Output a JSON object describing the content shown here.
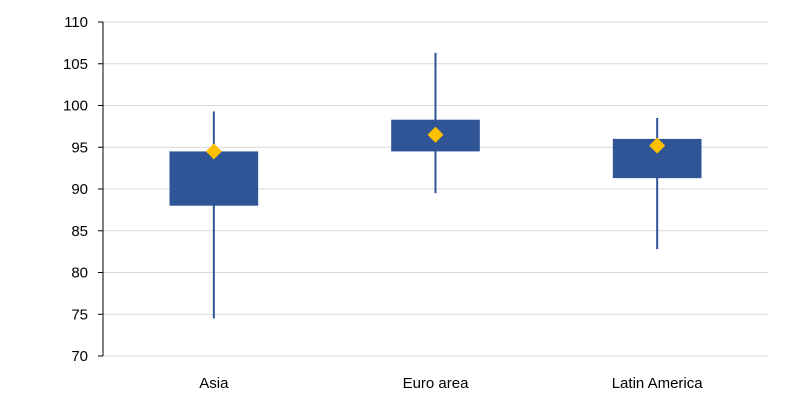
{
  "chart_data": {
    "type": "boxplot",
    "title": "",
    "xlabel": "",
    "ylabel": "",
    "ylim": [
      70,
      110
    ],
    "ytick_step": 5,
    "yticks": [
      "70",
      "75",
      "80",
      "85",
      "90",
      "95",
      "100",
      "105",
      "110"
    ],
    "grid": true,
    "legend": "none",
    "categories": [
      "Asia",
      "Euro area",
      "Latin America"
    ],
    "series": [
      {
        "category": "Asia",
        "whisker_low": 74.5,
        "box_low": 88.0,
        "box_high": 94.5,
        "whisker_high": 99.3,
        "marker": 94.5
      },
      {
        "category": "Euro area",
        "whisker_low": 89.5,
        "box_low": 94.5,
        "box_high": 98.3,
        "whisker_high": 106.3,
        "marker": 96.5
      },
      {
        "category": "Latin America",
        "whisker_low": 82.8,
        "box_low": 91.3,
        "box_high": 96.0,
        "whisker_high": 98.5,
        "marker": 95.2
      }
    ],
    "colors": {
      "box": "#2F5597",
      "whisker": "#2F5597",
      "marker": "#FFC000",
      "grid": "#D9D9D9",
      "axis": "#000000"
    }
  }
}
